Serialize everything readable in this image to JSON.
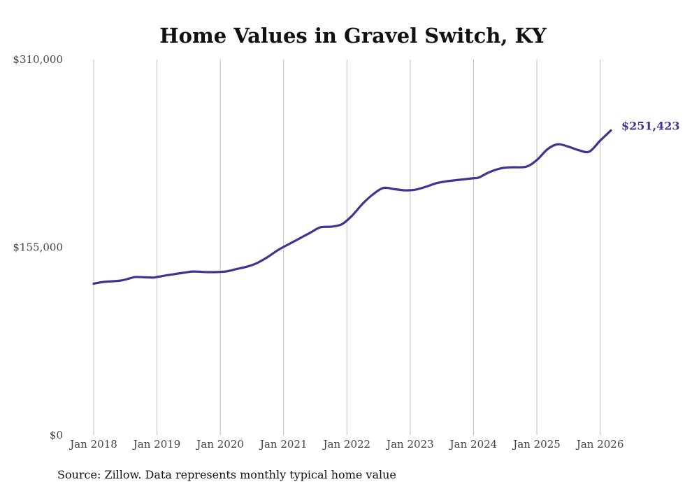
{
  "chart_data": {
    "type": "line",
    "title": "Home Values in Gravel Switch, KY",
    "xlabel": "",
    "ylabel": "",
    "ylim": [
      0,
      310000
    ],
    "y_ticks": [
      {
        "value": 0,
        "label": "$0"
      },
      {
        "value": 155000,
        "label": "$155,000"
      },
      {
        "value": 310000,
        "label": "$310,000"
      }
    ],
    "x_ticks": [
      {
        "value": 2018,
        "label": "Jan 2018"
      },
      {
        "value": 2019,
        "label": "Jan 2019"
      },
      {
        "value": 2020,
        "label": "Jan 2020"
      },
      {
        "value": 2021,
        "label": "Jan 2021"
      },
      {
        "value": 2022,
        "label": "Jan 2022"
      },
      {
        "value": 2023,
        "label": "Jan 2023"
      },
      {
        "value": 2024,
        "label": "Jan 2024"
      },
      {
        "value": 2025,
        "label": "Jan 2025"
      },
      {
        "value": 2026,
        "label": "Jan 2026"
      }
    ],
    "xlim": [
      2018,
      2026.17
    ],
    "grid": "vertical",
    "series": [
      {
        "name": "Typical home value",
        "color": "#3d3591",
        "x": [
          2018.0,
          2018.17,
          2018.42,
          2018.58,
          2018.67,
          2018.92,
          2019.0,
          2019.17,
          2019.42,
          2019.58,
          2019.83,
          2020.08,
          2020.25,
          2020.42,
          2020.58,
          2020.75,
          2020.92,
          2021.17,
          2021.42,
          2021.58,
          2021.75,
          2021.92,
          2022.08,
          2022.25,
          2022.42,
          2022.58,
          2022.75,
          2022.92,
          2023.08,
          2023.25,
          2023.42,
          2023.58,
          2023.83,
          2024.0,
          2024.08,
          2024.25,
          2024.42,
          2024.58,
          2024.83,
          2025.0,
          2025.17,
          2025.33,
          2025.5,
          2025.67,
          2025.83,
          2026.0,
          2026.17
        ],
        "values": [
          125000,
          126500,
          127500,
          129500,
          130500,
          130000,
          130500,
          132000,
          134000,
          135000,
          134500,
          135000,
          137000,
          139000,
          142000,
          147000,
          153000,
          160000,
          167000,
          171500,
          172000,
          174000,
          181000,
          191000,
          199000,
          204000,
          203000,
          202000,
          202500,
          205000,
          208000,
          209500,
          211000,
          212000,
          212500,
          217000,
          220000,
          221000,
          221500,
          227000,
          236000,
          240000,
          238000,
          235000,
          234000,
          243000,
          251423
        ]
      }
    ],
    "end_label": "$251,423",
    "source": "Source: Zillow. Data represents monthly typical home value"
  }
}
